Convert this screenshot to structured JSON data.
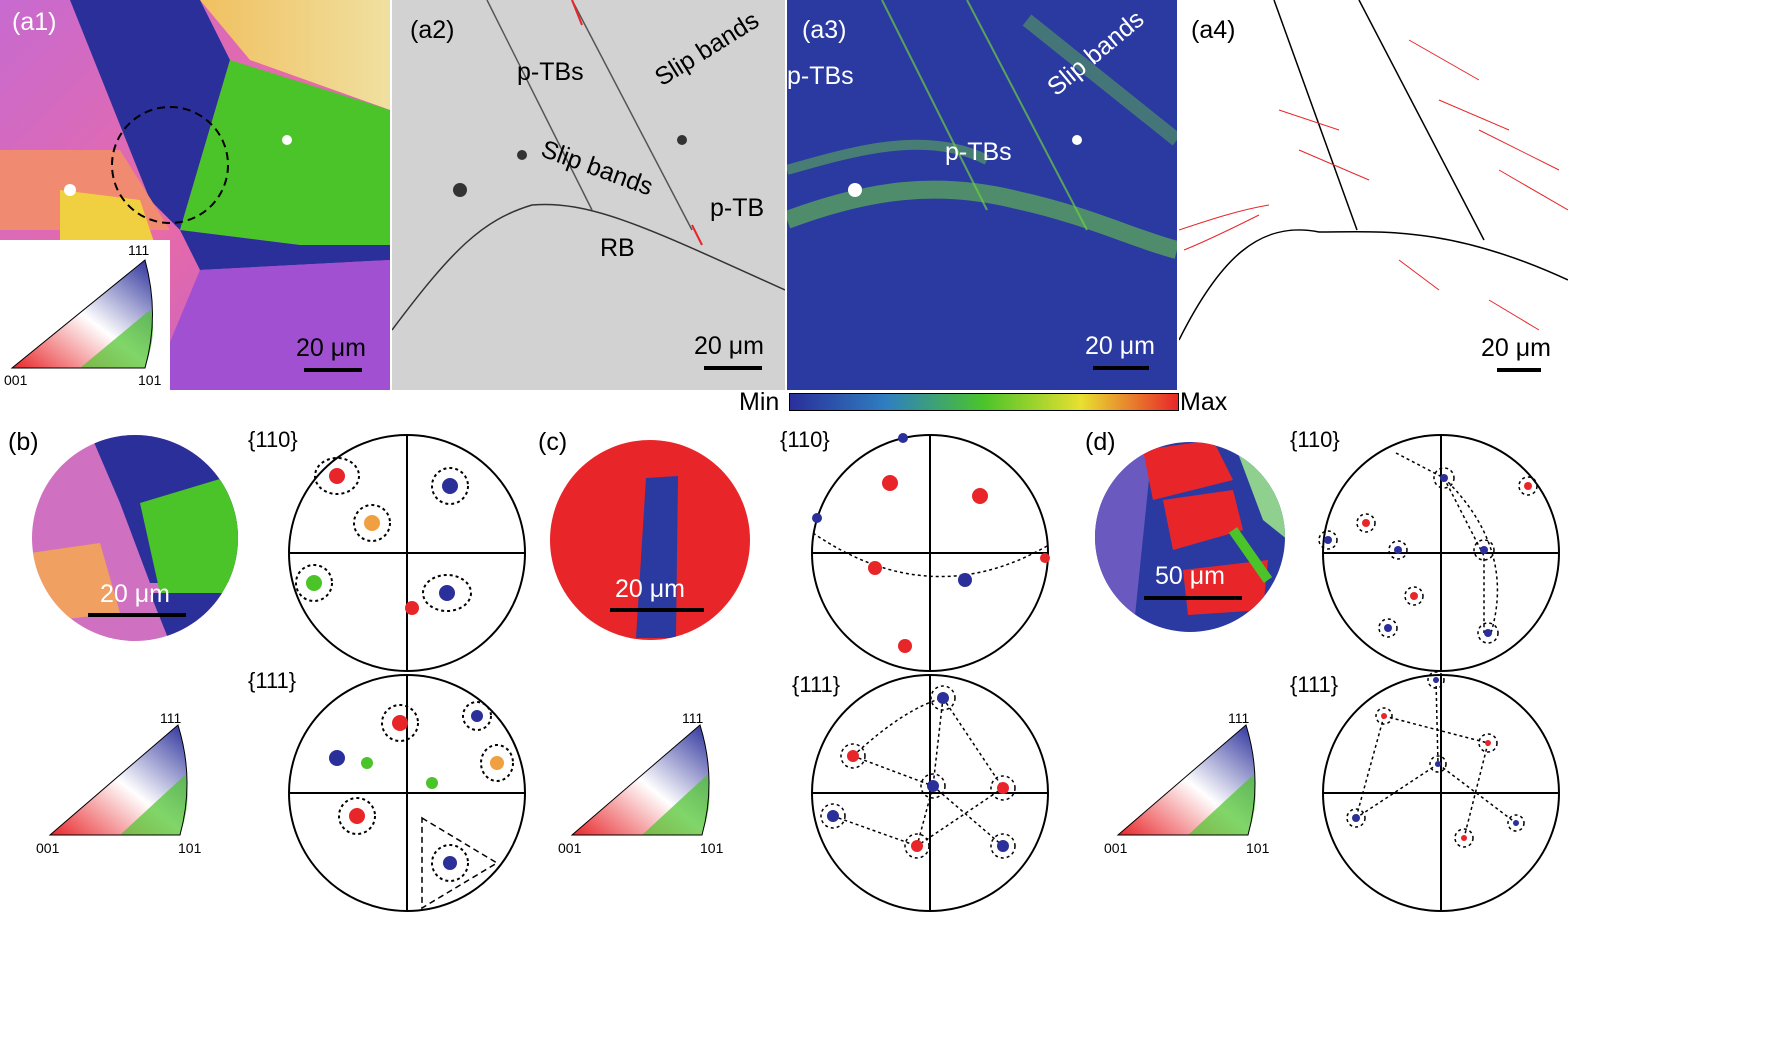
{
  "panels": {
    "a1": {
      "label": "(a1)",
      "scale": "20 μm"
    },
    "a2": {
      "label": "(a2)",
      "scale": "20 μm",
      "annotations": {
        "ptbs": "p-TBs",
        "slip1": "Slip bands",
        "slip2": "Slip bands",
        "ptb": "p-TB",
        "rb": "RB"
      }
    },
    "a3": {
      "label": "(a3)",
      "scale": "20 μm",
      "annotations": {
        "ptbs1": "p-TBs",
        "ptbs2": "p-TBs",
        "slip": "Slip bands"
      }
    },
    "a4": {
      "label": "(a4)",
      "scale": "20 μm"
    },
    "b": {
      "label": "(b)",
      "scale": "20 μm",
      "pf110": "{110}",
      "pf111": "{111}"
    },
    "c": {
      "label": "(c)",
      "scale": "20 μm",
      "pf110": "{110}",
      "pf111": "{111}"
    },
    "d": {
      "label": "(d)",
      "scale": "50 μm",
      "pf110": "{110}",
      "pf111": "{111}"
    }
  },
  "ipf_key": {
    "top": "111",
    "left": "001",
    "right": "101"
  },
  "colorbar": {
    "min": "Min",
    "max": "Max"
  },
  "colors": {
    "blue": "#2a2f9a",
    "green": "#4bc42a",
    "red": "#e8262a",
    "pink": "#e86aa8",
    "gray": "#c9c9c9"
  }
}
